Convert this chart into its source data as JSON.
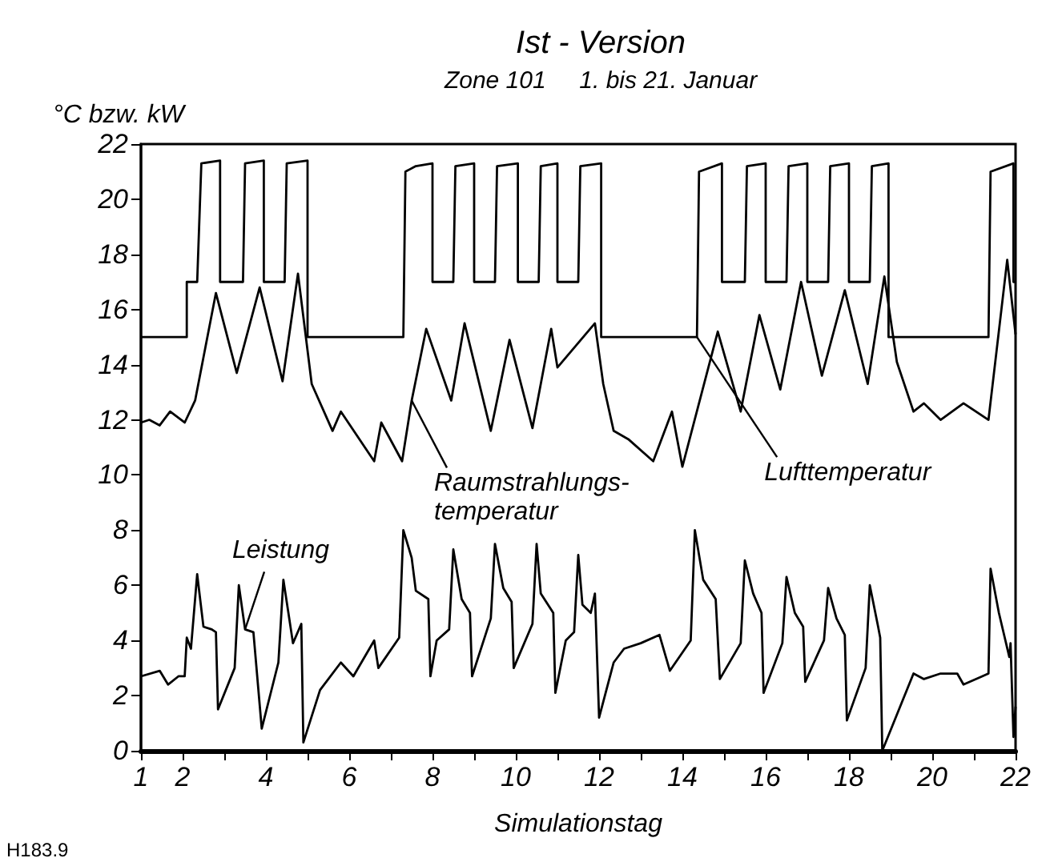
{
  "chart_data": {
    "type": "line",
    "title": "Ist - Version",
    "subtitle": "Zone 101     1. bis 21. Januar",
    "ylabel": "°C bzw. kW",
    "xlabel": "Simulationstag",
    "xlim": [
      1,
      22
    ],
    "xticks": [
      1,
      2,
      {
        "value": 3,
        "label": null
      },
      4,
      {
        "value": 5,
        "label": null
      },
      6,
      {
        "value": 7,
        "label": null
      },
      8,
      {
        "value": 9,
        "label": null
      },
      10,
      {
        "value": 11,
        "label": null
      },
      12,
      {
        "value": 13,
        "label": null
      },
      14,
      {
        "value": 15,
        "label": null
      },
      16,
      {
        "value": 17,
        "label": null
      },
      18,
      {
        "value": 19,
        "label": null
      },
      20,
      {
        "value": 21,
        "label": null
      },
      22
    ],
    "ylim": [
      0,
      22
    ],
    "yticks": [
      0,
      2,
      4,
      6,
      8,
      10,
      12,
      14,
      16,
      18,
      20,
      22
    ],
    "grid": false,
    "legend": false,
    "marker": "none",
    "line_style": "solid",
    "series": [
      {
        "name": "Lufttemperatur",
        "color": "#000000",
        "x": [
          1,
          2.1,
          2.1,
          2.35,
          2.45,
          2.9,
          2.9,
          3.45,
          3.5,
          3.95,
          3.95,
          4.45,
          4.5,
          5.0,
          5.0,
          7.3,
          7.35,
          7.6,
          8.0,
          8.0,
          8.5,
          8.55,
          9.0,
          9.0,
          9.5,
          9.55,
          10.05,
          10.05,
          10.55,
          10.6,
          11.0,
          11.0,
          11.5,
          11.55,
          12.05,
          12.05,
          14.35,
          14.4,
          14.95,
          14.95,
          15.5,
          15.55,
          16.0,
          16.0,
          16.5,
          16.55,
          17.0,
          17.0,
          17.5,
          17.55,
          18.0,
          18.0,
          18.5,
          18.55,
          18.95,
          18.95,
          21.35,
          21.4,
          21.95,
          21.95,
          22
        ],
        "values": [
          15,
          15,
          17,
          17,
          21.3,
          21.4,
          17,
          17,
          21.3,
          21.4,
          17,
          17,
          21.3,
          21.4,
          15,
          15,
          21.0,
          21.2,
          21.3,
          17,
          17,
          21.2,
          21.3,
          17,
          17,
          21.2,
          21.3,
          17,
          17,
          21.2,
          21.3,
          17,
          17,
          21.2,
          21.3,
          15,
          15,
          21.0,
          21.3,
          17,
          17,
          21.2,
          21.3,
          17,
          17,
          21.2,
          21.3,
          17,
          17,
          21.2,
          21.3,
          17,
          17,
          21.2,
          21.3,
          15,
          15,
          21.0,
          21.3,
          17,
          17
        ]
      },
      {
        "name": "Raumstrahlungs-\ntemperatur",
        "color": "#000000",
        "x": [
          1,
          1.2,
          1.45,
          1.7,
          2.05,
          2.3,
          2.8,
          3.3,
          3.85,
          4.4,
          4.77,
          5.1,
          5.6,
          5.8,
          6.6,
          6.77,
          7.27,
          7.5,
          7.85,
          8.45,
          8.77,
          9.4,
          9.85,
          10.4,
          10.85,
          11.0,
          11.9,
          12.1,
          12.35,
          12.7,
          13.3,
          13.75,
          14.0,
          14.85,
          15.4,
          15.85,
          16.35,
          16.85,
          17.35,
          17.9,
          18.45,
          18.85,
          19.15,
          19.55,
          19.8,
          20.2,
          20.75,
          21.35,
          21.8,
          22
        ],
        "values": [
          11.9,
          12.0,
          11.8,
          12.3,
          11.9,
          12.7,
          16.6,
          13.7,
          16.8,
          13.4,
          17.3,
          13.3,
          11.6,
          12.3,
          10.5,
          11.9,
          10.5,
          12.7,
          15.3,
          12.7,
          15.5,
          11.6,
          14.9,
          11.7,
          15.3,
          13.9,
          15.5,
          13.3,
          11.6,
          11.3,
          10.5,
          12.3,
          10.3,
          15.2,
          12.3,
          15.8,
          13.1,
          17.0,
          13.6,
          16.7,
          13.3,
          17.2,
          14.1,
          12.3,
          12.6,
          12.0,
          12.6,
          12.0,
          17.8,
          15.1
        ]
      },
      {
        "name": "Leistung",
        "color": "#000000",
        "x": [
          1,
          1.45,
          1.65,
          1.9,
          2.05,
          2.1,
          2.2,
          2.35,
          2.5,
          2.7,
          2.8,
          2.85,
          3.25,
          3.35,
          3.5,
          3.7,
          3.9,
          4.3,
          4.42,
          4.65,
          4.85,
          4.9,
          5.3,
          5.8,
          6.1,
          6.6,
          6.7,
          7.2,
          7.3,
          7.5,
          7.6,
          7.9,
          7.95,
          8.1,
          8.4,
          8.5,
          8.7,
          8.9,
          8.95,
          9.4,
          9.5,
          9.7,
          9.9,
          9.95,
          10.4,
          10.5,
          10.6,
          10.9,
          10.95,
          11.2,
          11.4,
          11.5,
          11.6,
          11.8,
          11.9,
          12.0,
          12.35,
          12.6,
          13.0,
          13.45,
          13.7,
          14.2,
          14.3,
          14.5,
          14.8,
          14.9,
          15.4,
          15.5,
          15.7,
          15.9,
          15.95,
          16.4,
          16.5,
          16.7,
          16.9,
          16.95,
          17.4,
          17.5,
          17.7,
          17.9,
          17.95,
          18.4,
          18.5,
          18.7,
          18.75,
          18.8,
          19.55,
          19.8,
          20.2,
          20.6,
          20.75,
          21.2,
          21.35,
          21.4,
          21.6,
          21.85,
          21.88,
          21.95,
          22
        ],
        "values": [
          2.7,
          2.9,
          2.4,
          2.7,
          2.7,
          4.1,
          3.7,
          6.4,
          4.5,
          4.4,
          4.3,
          1.5,
          3.0,
          6.0,
          4.4,
          4.3,
          0.8,
          3.2,
          6.2,
          3.9,
          4.6,
          0.3,
          2.2,
          3.2,
          2.7,
          4.0,
          3.0,
          4.1,
          8.0,
          7.0,
          5.8,
          5.5,
          2.7,
          4.0,
          4.4,
          7.3,
          5.5,
          5.0,
          2.7,
          4.8,
          7.5,
          5.9,
          5.4,
          3.0,
          4.6,
          7.5,
          5.7,
          5.0,
          2.1,
          4.0,
          4.3,
          7.1,
          5.3,
          5.0,
          5.7,
          1.2,
          3.2,
          3.7,
          3.9,
          4.2,
          2.9,
          4.0,
          8.0,
          6.2,
          5.5,
          2.6,
          3.9,
          6.9,
          5.7,
          5.0,
          2.1,
          3.9,
          6.3,
          5.0,
          4.5,
          2.5,
          4.0,
          5.9,
          4.8,
          4.2,
          1.1,
          3.0,
          6.0,
          4.5,
          4.1,
          0.0,
          2.8,
          2.6,
          2.8,
          2.8,
          2.4,
          2.7,
          2.8,
          6.6,
          5.0,
          3.4,
          3.9,
          0.5,
          1.6
        ]
      }
    ],
    "annotations": [
      "H183.9"
    ]
  }
}
